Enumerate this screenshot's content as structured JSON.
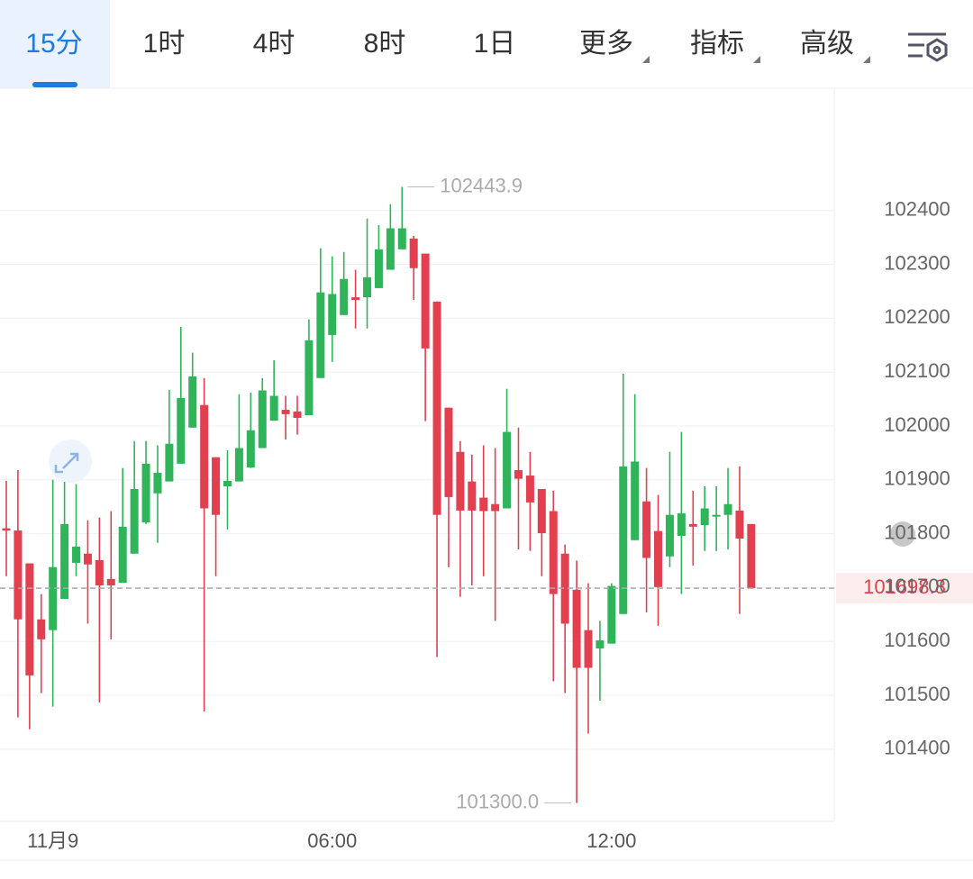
{
  "toolbar": {
    "tabs": [
      "15分",
      "1时",
      "4时",
      "8时",
      "1日",
      "更多",
      "指标",
      "高级"
    ],
    "active": 0
  },
  "chart_data": {
    "type": "candlestick",
    "categories": [
      null,
      null,
      null,
      null,
      "11月9",
      null,
      null,
      null,
      null,
      null,
      null,
      null,
      null,
      null,
      null,
      null,
      null,
      null,
      null,
      null,
      null,
      null,
      null,
      null,
      null,
      null,
      null,
      null,
      "06:00",
      null,
      null,
      null,
      null,
      null,
      null,
      null,
      null,
      null,
      null,
      null,
      null,
      null,
      null,
      null,
      null,
      null,
      null,
      null,
      null,
      null,
      null,
      null,
      "12:00",
      null,
      null,
      null,
      null,
      null,
      null,
      null,
      null,
      null,
      null,
      null,
      null
    ],
    "open": [
      101810,
      101806,
      101745,
      101641,
      101621,
      101679,
      101746,
      101763,
      101751,
      101716,
      101709,
      101763,
      101821,
      101875,
      101897,
      101930,
      101997,
      102039,
      101942,
      101888,
      101897,
      101923,
      101959,
      102010,
      102030,
      102027,
      102020,
      102089,
      102169,
      102206,
      102239,
      102239,
      102256,
      102290,
      102328,
      102348,
      102320,
      102231,
      102034,
      101952,
      101897,
      101867,
      101855,
      101847,
      101918,
      101908,
      101883,
      101842,
      101763,
      101696,
      101621,
      101587,
      101596,
      101651,
      101788,
      101860,
      101805,
      101758,
      101796,
      101818,
      101816,
      101833,
      101835,
      101843,
      101818
    ],
    "high": [
      101898,
      101918,
      101745,
      101688,
      101900,
      101922,
      101892,
      101825,
      101830,
      101842,
      101922,
      101972,
      101972,
      101964,
      102067,
      102184,
      102136,
      102089,
      101942,
      101955,
      102059,
      102062,
      102089,
      102122,
      102056,
      102056,
      102198,
      102330,
      102315,
      102323,
      102290,
      102385,
      102373,
      102412,
      102443.9,
      102353,
      102320,
      102231,
      102034,
      101972,
      101947,
      101964,
      101959,
      102069,
      101997,
      101952,
      101883,
      101880,
      101780,
      101750,
      101708,
      101638,
      101708,
      102097,
      102059,
      101922,
      101872,
      101952,
      101989,
      101880,
      101888,
      101888,
      101922,
      101925,
      101818
    ],
    "low": [
      101721,
      101459,
      101437,
      101504,
      101479,
      101679,
      101721,
      101633,
      101487,
      101604,
      101709,
      101763,
      101818,
      101783,
      101897,
      101930,
      101997,
      101470,
      101721,
      101808,
      101897,
      101922,
      101959,
      102010,
      101975,
      101984,
      102020,
      102089,
      102119,
      102206,
      102181,
      102181,
      102256,
      102290,
      102328,
      102234,
      102009,
      101571,
      101738,
      101683,
      101704,
      101721,
      101638,
      101847,
      101771,
      101768,
      101721,
      101526,
      101504,
      101300.0,
      101429,
      101490,
      101596,
      101651,
      101788,
      101654,
      101629,
      101738,
      101688,
      101741,
      101768,
      101768,
      101771,
      101651,
      101698.8
    ],
    "close": [
      101806,
      101641,
      101537,
      101604,
      101738,
      101818,
      101776,
      101743,
      101704,
      101704,
      101813,
      101883,
      101930,
      101913,
      101967,
      102052,
      102092,
      101847,
      101835,
      101898,
      101959,
      101992,
      102066,
      102056,
      102022,
      102015,
      102159,
      102248,
      102245,
      102273,
      102234,
      102276,
      102328,
      102367,
      102367,
      102293,
      102144,
      101835,
      101868,
      101843,
      101843,
      101842,
      101842,
      101989,
      101902,
      101858,
      101801,
      101688,
      101633,
      101551,
      101551,
      101602,
      101703,
      101925,
      101934,
      101755,
      101701,
      101835,
      101838,
      101813,
      101847,
      101835,
      101855,
      101791,
      101698.8
    ],
    "high_label": "102443.9",
    "low_label": "101300.0",
    "ylim": [
      101266,
      102627
    ],
    "yticks": [
      101400,
      101500,
      101600,
      101700,
      101800,
      101900,
      102000,
      102100,
      102200,
      102300,
      102400
    ],
    "grid": true,
    "up_color": "#2fb45a",
    "down_color": "#e2404f"
  }
}
